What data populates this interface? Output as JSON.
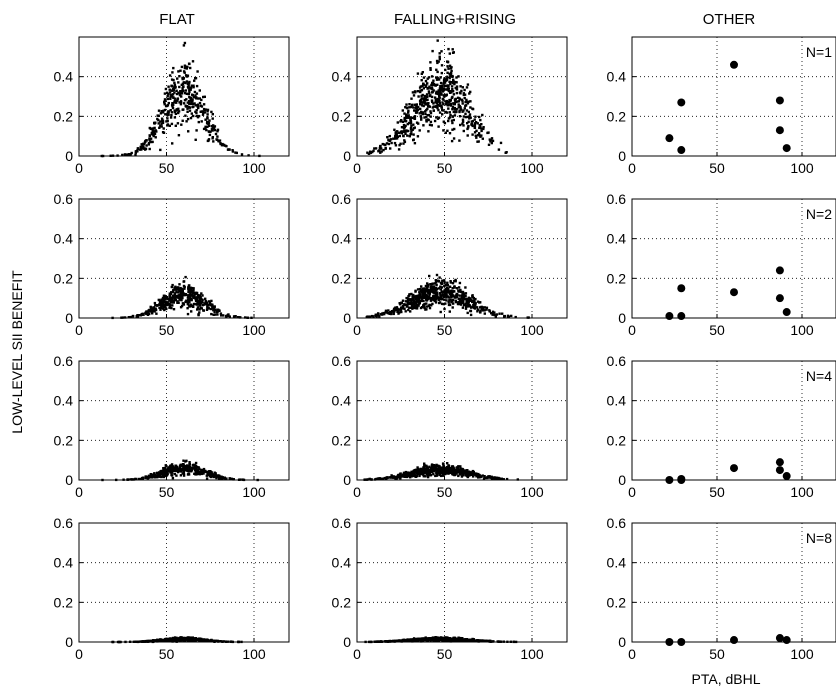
{
  "chart_data": {
    "type": "scatter",
    "column_titles": [
      "FLAT",
      "FALLING+RISING",
      "OTHER"
    ],
    "ylabel": "LOW-LEVEL SII BENEFIT",
    "xlabel": "PTA, dBHL",
    "xlim": [
      0,
      120
    ],
    "xticks": [
      0,
      50,
      100
    ],
    "grid": true,
    "rows": [
      {
        "annotation": "N=1",
        "ylim": [
          0,
          0.6
        ],
        "yticks": [
          "0",
          "0.2",
          "0.4"
        ],
        "peak_flat": 0.32,
        "peak_fr": 0.33
      },
      {
        "annotation": "N=2",
        "ylim": [
          0,
          0.6
        ],
        "yticks": [
          "0",
          "0.2",
          "0.4",
          "0.6"
        ],
        "peak_flat": 0.12,
        "peak_fr": 0.13
      },
      {
        "annotation": "N=4",
        "ylim": [
          0,
          0.6
        ],
        "yticks": [
          "0",
          "0.2",
          "0.4",
          "0.6"
        ],
        "peak_flat": 0.06,
        "peak_fr": 0.05
      },
      {
        "annotation": "N=8",
        "ylim": [
          0,
          0.6
        ],
        "yticks": [
          "0",
          "0.2",
          "0.4",
          "0.6"
        ],
        "peak_flat": 0.015,
        "peak_fr": 0.015
      }
    ],
    "other_points": [
      [
        {
          "x": 22,
          "y": 0.09
        },
        {
          "x": 29,
          "y": 0.27
        },
        {
          "x": 29,
          "y": 0.03
        },
        {
          "x": 60,
          "y": 0.46
        },
        {
          "x": 87,
          "y": 0.28
        },
        {
          "x": 87,
          "y": 0.13
        },
        {
          "x": 91,
          "y": 0.04
        }
      ],
      [
        {
          "x": 22,
          "y": 0.01
        },
        {
          "x": 29,
          "y": 0.15
        },
        {
          "x": 29,
          "y": 0.01
        },
        {
          "x": 60,
          "y": 0.13
        },
        {
          "x": 87,
          "y": 0.24
        },
        {
          "x": 87,
          "y": 0.1
        },
        {
          "x": 91,
          "y": 0.03
        }
      ],
      [
        {
          "x": 22,
          "y": 0.0
        },
        {
          "x": 29,
          "y": 0.0
        },
        {
          "x": 29,
          "y": 0.005
        },
        {
          "x": 60,
          "y": 0.06
        },
        {
          "x": 87,
          "y": 0.09
        },
        {
          "x": 87,
          "y": 0.05
        },
        {
          "x": 91,
          "y": 0.02
        }
      ],
      [
        {
          "x": 22,
          "y": 0.0
        },
        {
          "x": 29,
          "y": 0.0
        },
        {
          "x": 60,
          "y": 0.01
        },
        {
          "x": 87,
          "y": 0.02
        },
        {
          "x": 91,
          "y": 0.01
        }
      ]
    ],
    "marker_flat_fr": "small dot",
    "marker_other": "large filled circle",
    "color": "#000000"
  }
}
